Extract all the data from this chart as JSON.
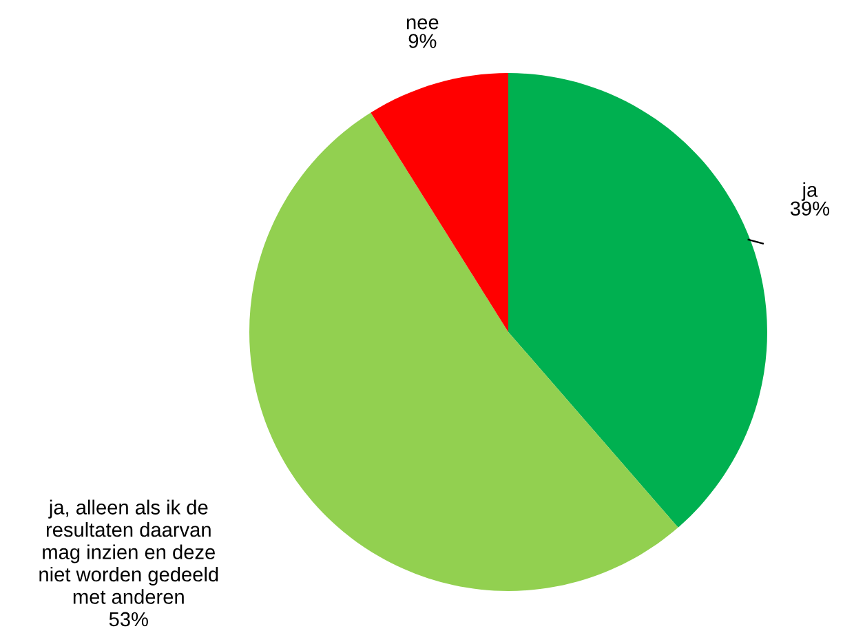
{
  "chart_data": {
    "type": "pie",
    "categories": [
      "ja",
      "ja, alleen als ik de\nresultaten daarvan\nmag inzien en deze\nniet worden gedeeld\nmet anderen",
      "nee"
    ],
    "values": [
      39,
      53,
      9
    ],
    "value_labels": [
      "39%",
      "53%",
      "9%"
    ],
    "colors": [
      "#00b050",
      "#92d050",
      "#ff0000"
    ],
    "legend": false
  }
}
